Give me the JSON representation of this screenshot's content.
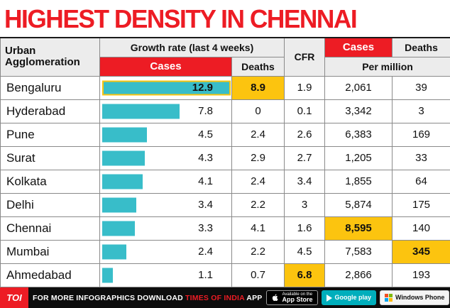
{
  "title": "HIGHEST DENSITY IN CHENNAI",
  "colors": {
    "red": "#ed1c24",
    "teal": "#38bdc9",
    "gold": "#fcc40f"
  },
  "table": {
    "bar_scale_max": 13.2,
    "headers": {
      "urban": "Urban Agglomeration",
      "growth": "Growth rate (last 4 weeks)",
      "growth_cases": "Cases",
      "growth_deaths": "Deaths",
      "cfr": "CFR",
      "pm_cases": "Cases",
      "pm_deaths": "Deaths",
      "per_million": "Per million"
    },
    "rows": [
      {
        "city": "Bengaluru",
        "growth_cases": "12.9",
        "growth_deaths": "8.9",
        "cfr": "1.9",
        "cases_pm": "2,061",
        "deaths_pm": "39"
      },
      {
        "city": "Hyderabad",
        "growth_cases": "7.8",
        "growth_deaths": "0",
        "cfr": "0.1",
        "cases_pm": "3,342",
        "deaths_pm": "3"
      },
      {
        "city": "Pune",
        "growth_cases": "4.5",
        "growth_deaths": "2.4",
        "cfr": "2.6",
        "cases_pm": "6,383",
        "deaths_pm": "169"
      },
      {
        "city": "Surat",
        "growth_cases": "4.3",
        "growth_deaths": "2.9",
        "cfr": "2.7",
        "cases_pm": "1,205",
        "deaths_pm": "33"
      },
      {
        "city": "Kolkata",
        "growth_cases": "4.1",
        "growth_deaths": "2.4",
        "cfr": "3.4",
        "cases_pm": "1,855",
        "deaths_pm": "64"
      },
      {
        "city": "Delhi",
        "growth_cases": "3.4",
        "growth_deaths": "2.2",
        "cfr": "3",
        "cases_pm": "5,874",
        "deaths_pm": "175"
      },
      {
        "city": "Chennai",
        "growth_cases": "3.3",
        "growth_deaths": "4.1",
        "cfr": "1.6",
        "cases_pm": "8,595",
        "deaths_pm": "140"
      },
      {
        "city": "Mumbai",
        "growth_cases": "2.4",
        "growth_deaths": "2.2",
        "cfr": "4.5",
        "cases_pm": "7,583",
        "deaths_pm": "345"
      },
      {
        "city": "Ahmedabad",
        "growth_cases": "1.1",
        "growth_deaths": "0.7",
        "cfr": "6.8",
        "cases_pm": "2,866",
        "deaths_pm": "193"
      }
    ]
  },
  "chart_data": {
    "type": "table",
    "title": "HIGHEST DENSITY IN CHENNAI",
    "columns": [
      "Urban Agglomeration",
      "Growth rate (last 4 weeks) Cases",
      "Growth rate (last 4 weeks) Deaths",
      "CFR",
      "Cases Per million",
      "Deaths Per million"
    ],
    "rows": [
      [
        "Bengaluru",
        12.9,
        8.9,
        1.9,
        2061,
        39
      ],
      [
        "Hyderabad",
        7.8,
        0,
        0.1,
        3342,
        3
      ],
      [
        "Pune",
        4.5,
        2.4,
        2.6,
        6383,
        169
      ],
      [
        "Surat",
        4.3,
        2.9,
        2.7,
        1205,
        33
      ],
      [
        "Kolkata",
        4.1,
        2.4,
        3.4,
        1855,
        64
      ],
      [
        "Delhi",
        3.4,
        2.2,
        3,
        5874,
        175
      ],
      [
        "Chennai",
        3.3,
        4.1,
        1.6,
        8595,
        140
      ],
      [
        "Mumbai",
        2.4,
        2.2,
        4.5,
        7583,
        345
      ],
      [
        "Ahmedabad",
        1.1,
        0.7,
        6.8,
        2866,
        193
      ]
    ],
    "embedded_bar_series": "Growth rate (last 4 weeks) Cases",
    "bar_max_value": 12.9,
    "highlighted_cells": [
      "Bengaluru: Deaths growth 8.9",
      "Ahmedabad: CFR 6.8",
      "Chennai: Cases per million 8,595",
      "Mumbai: Deaths per million 345"
    ]
  },
  "footer": {
    "logo": "TOI",
    "text_before": "FOR MORE  INFOGRAPHICS  DOWNLOAD",
    "brand": "TIMES OF INDIA",
    "text_after": "APP",
    "badges": [
      {
        "name": "app-store",
        "line1": "Available on the",
        "line2": "App Store"
      },
      {
        "name": "google-play",
        "line1": "",
        "line2": "Google play"
      },
      {
        "name": "windows-phone",
        "line1": "",
        "line2": "Windows Phone"
      }
    ]
  }
}
